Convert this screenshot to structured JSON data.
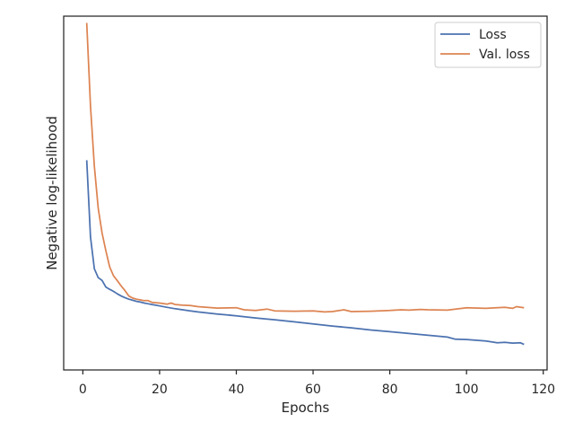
{
  "chart_data": {
    "type": "line",
    "title": "",
    "xlabel": "Epochs",
    "ylabel": "Negative log-likelihood",
    "xlim": [
      -5,
      121
    ],
    "ylim": [
      0,
      1
    ],
    "x_ticks": [
      0,
      20,
      40,
      60,
      80,
      100,
      120
    ],
    "y_ticks_visible": false,
    "grid": false,
    "legend": "top-right",
    "series": [
      {
        "name": "Loss",
        "color": "#4c72b0",
        "x": [
          1,
          2,
          3,
          4,
          5,
          6,
          7,
          8,
          9,
          10,
          11,
          12,
          13,
          14,
          15,
          16,
          17,
          18,
          19,
          20,
          22,
          24,
          26,
          28,
          30,
          35,
          40,
          45,
          50,
          55,
          60,
          65,
          70,
          75,
          80,
          85,
          90,
          95,
          97,
          100,
          105,
          108,
          110,
          112,
          114,
          115
        ],
        "values": [
          0.593,
          0.376,
          0.286,
          0.261,
          0.253,
          0.234,
          0.228,
          0.222,
          0.215,
          0.209,
          0.204,
          0.2,
          0.197,
          0.194,
          0.192,
          0.189,
          0.187,
          0.185,
          0.183,
          0.181,
          0.177,
          0.173,
          0.17,
          0.167,
          0.164,
          0.158,
          0.153,
          0.147,
          0.142,
          0.136,
          0.13,
          0.124,
          0.119,
          0.113,
          0.108,
          0.103,
          0.098,
          0.093,
          0.087,
          0.086,
          0.082,
          0.077,
          0.078,
          0.076,
          0.077,
          0.072
        ]
      },
      {
        "name": "Val. loss",
        "color": "#dd8452",
        "x": [
          1,
          2,
          3,
          4,
          5,
          6,
          7,
          8,
          9,
          10,
          11,
          12,
          13,
          14,
          15,
          16,
          17,
          18,
          20,
          22,
          23,
          24,
          26,
          28,
          30,
          35,
          40,
          42,
          45,
          48,
          50,
          55,
          60,
          63,
          65,
          68,
          70,
          75,
          80,
          83,
          85,
          88,
          90,
          95,
          100,
          105,
          110,
          112,
          113,
          115
        ],
        "values": [
          0.981,
          0.746,
          0.576,
          0.457,
          0.387,
          0.336,
          0.291,
          0.266,
          0.252,
          0.237,
          0.224,
          0.209,
          0.203,
          0.2,
          0.198,
          0.196,
          0.196,
          0.191,
          0.189,
          0.186,
          0.189,
          0.185,
          0.183,
          0.182,
          0.179,
          0.175,
          0.176,
          0.17,
          0.168,
          0.172,
          0.167,
          0.166,
          0.167,
          0.164,
          0.165,
          0.17,
          0.165,
          0.166,
          0.168,
          0.17,
          0.169,
          0.171,
          0.17,
          0.169,
          0.176,
          0.174,
          0.177,
          0.174,
          0.179,
          0.176
        ]
      }
    ]
  }
}
